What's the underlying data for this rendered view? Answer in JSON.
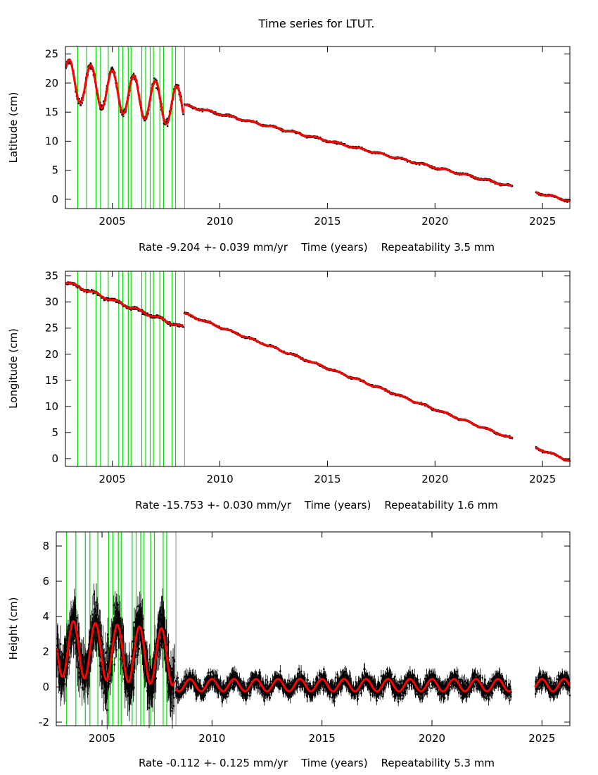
{
  "title": "Time series for LTUT.",
  "chart_data": [
    {
      "type": "scatter",
      "ylabel": "Latitude (cm)",
      "xlabel": "Time (years)",
      "rate_text": "Rate -9.204 +- 0.039 mm/yr",
      "repeat_text": "Repeatability 3.5 mm",
      "xlim": [
        2002.82,
        2026.27
      ],
      "ylim": [
        -1.6,
        26.3
      ],
      "xticks": [
        2005,
        2010,
        2015,
        2020,
        2025
      ],
      "yticks": [
        0,
        5,
        10,
        15,
        20,
        25
      ],
      "segments": [
        {
          "start": 2002.85,
          "end": 2008.3,
          "offset": 20.5,
          "t0": 2003,
          "rate": -0.9,
          "annual_amp": 3.5,
          "phase_year": 2003.0,
          "noise": 0.6
        },
        {
          "start": 2008.35,
          "end": 2023.6,
          "offset": 16.2,
          "t0": 2008.35,
          "rate": -0.92,
          "annual_amp": 0.15,
          "phase_year": 2008.5,
          "noise": 0.15
        },
        {
          "start": 2024.7,
          "end": 2026.27,
          "offset": 16.2,
          "t0": 2008.35,
          "rate": -0.92,
          "annual_amp": 0.15,
          "phase_year": 2008.5,
          "noise": 0.15
        }
      ]
    },
    {
      "type": "scatter",
      "ylabel": "Longitude (cm)",
      "xlabel": "Time (years)",
      "rate_text": "Rate -15.753 +- 0.030 mm/yr",
      "repeat_text": "Repeatability 1.6 mm",
      "xlim": [
        2002.82,
        2026.27
      ],
      "ylim": [
        -1.5,
        35.9
      ],
      "xticks": [
        2005,
        2010,
        2015,
        2020,
        2025
      ],
      "yticks": [
        0,
        5,
        10,
        15,
        20,
        25,
        30,
        35
      ],
      "segments": [
        {
          "start": 2002.85,
          "end": 2008.3,
          "offset": 33.8,
          "t0": 2002.85,
          "rate": -1.6,
          "annual_amp": 0.25,
          "phase_year": 2003.2,
          "noise": 0.25
        },
        {
          "start": 2008.35,
          "end": 2023.6,
          "offset": 27.8,
          "t0": 2008.35,
          "rate": -1.575,
          "annual_amp": 0.15,
          "phase_year": 2008.5,
          "noise": 0.15
        },
        {
          "start": 2024.7,
          "end": 2026.27,
          "offset": 27.8,
          "t0": 2008.35,
          "rate": -1.575,
          "annual_amp": 0.15,
          "phase_year": 2008.5,
          "noise": 0.15
        }
      ]
    },
    {
      "type": "scatter",
      "ylabel": "Height (cm)",
      "xlabel": "Time (years)",
      "rate_text": "Rate -0.112 +- 0.125 mm/yr",
      "repeat_text": "Repeatability 5.3 mm",
      "xlim": [
        2002.92,
        2026.27
      ],
      "ylim": [
        -2.2,
        8.8
      ],
      "xticks": [
        2005,
        2010,
        2015,
        2020,
        2025
      ],
      "yticks": [
        -2,
        0,
        2,
        4,
        6,
        8
      ],
      "segments": [
        {
          "start": 2002.95,
          "end": 2008.3,
          "offset": 2.2,
          "t0": 2003,
          "rate": -0.1,
          "annual_amp": 1.6,
          "phase_year": 2003.7,
          "noise": 1.3
        },
        {
          "start": 2008.35,
          "end": 2023.6,
          "offset": 0.1,
          "t0": 2008.35,
          "rate": 0,
          "annual_amp": 0.35,
          "phase_year": 2009.0,
          "noise": 0.45
        },
        {
          "start": 2024.7,
          "end": 2026.27,
          "offset": 0.1,
          "t0": 2008.35,
          "rate": 0,
          "annual_amp": 0.35,
          "phase_year": 2009.0,
          "noise": 0.45
        }
      ]
    }
  ],
  "events": [
    2003.39,
    2003.81,
    2004.24,
    2004.45,
    2004.81,
    2005.3,
    2005.49,
    2005.74,
    2005.87,
    2006.37,
    2006.55,
    2006.76,
    2006.91,
    2007.21,
    2007.38,
    2007.78,
    2007.94,
    2008.36
  ],
  "event_colors": {
    "equipment": "#00dd00",
    "other": "#a0a0a0"
  },
  "colors": {
    "data": "#000000",
    "fit": "#ff0000"
  }
}
